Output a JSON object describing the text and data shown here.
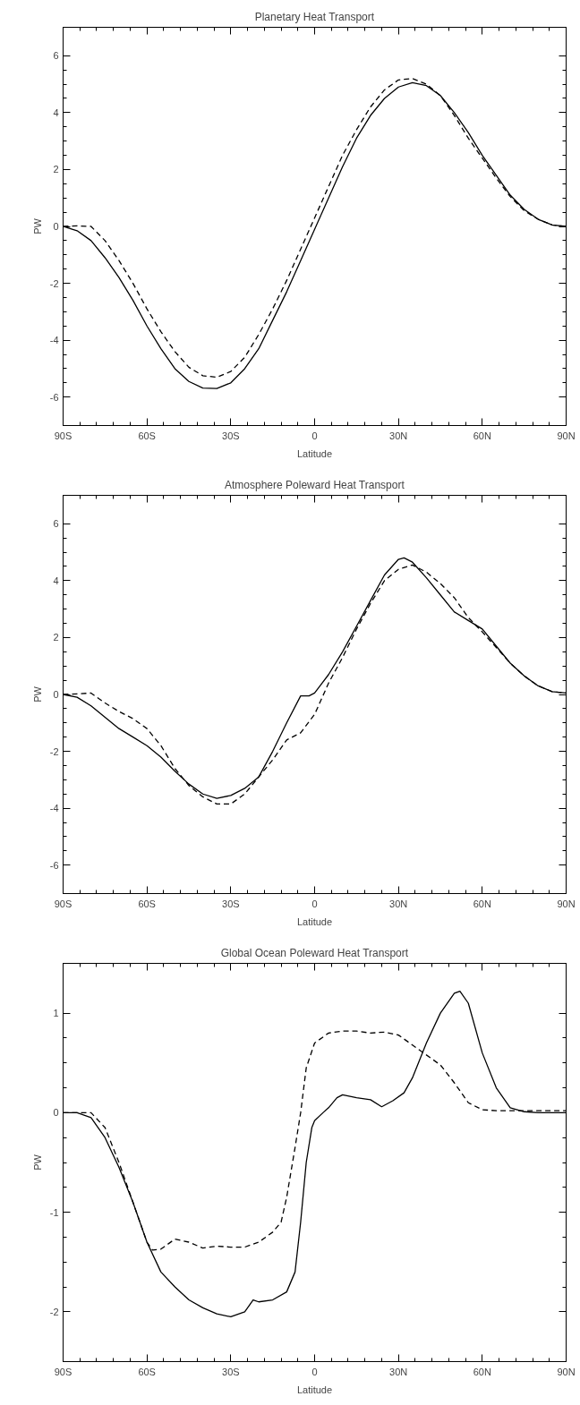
{
  "chart_data": [
    {
      "type": "line",
      "title": "Planetary Heat Transport",
      "xlabel": "Latitude",
      "ylabel": "PW",
      "xlim": [
        -90,
        90
      ],
      "ylim": [
        -7,
        7
      ],
      "xticks": [
        {
          "value": -90,
          "label": "90S"
        },
        {
          "value": -60,
          "label": "60S"
        },
        {
          "value": -30,
          "label": "30S"
        },
        0,
        {
          "value": 30,
          "label": "30N"
        },
        {
          "value": 60,
          "label": "60N"
        },
        {
          "value": 90,
          "label": "90N"
        }
      ],
      "yticks": [
        -6,
        -4,
        -2,
        0,
        2,
        4,
        6
      ],
      "grid": false,
      "series": [
        {
          "color": "#000000",
          "line_style": "solid",
          "x": [
            -90,
            -85,
            -80,
            -75,
            -70,
            -65,
            -60,
            -55,
            -50,
            -45,
            -40,
            -35,
            -30,
            -25,
            -20,
            -15,
            -10,
            -5,
            0,
            5,
            10,
            15,
            20,
            25,
            30,
            35,
            40,
            45,
            50,
            55,
            60,
            65,
            70,
            75,
            80,
            85,
            90
          ],
          "values": [
            0,
            -0.15,
            -0.5,
            -1.1,
            -1.8,
            -2.6,
            -3.5,
            -4.3,
            -5.0,
            -5.45,
            -5.68,
            -5.7,
            -5.5,
            -5.0,
            -4.3,
            -3.3,
            -2.3,
            -1.2,
            -0.1,
            1.0,
            2.1,
            3.1,
            3.9,
            4.5,
            4.9,
            5.05,
            4.95,
            4.6,
            4.0,
            3.3,
            2.5,
            1.8,
            1.1,
            0.6,
            0.25,
            0.05,
            0
          ]
        },
        {
          "color": "#000000",
          "line_style": "dashed",
          "x": [
            -90,
            -85,
            -80,
            -75,
            -70,
            -65,
            -60,
            -55,
            -50,
            -45,
            -40,
            -35,
            -30,
            -25,
            -20,
            -15,
            -10,
            -5,
            0,
            5,
            10,
            15,
            20,
            25,
            30,
            35,
            40,
            45,
            50,
            55,
            60,
            65,
            70,
            75,
            80,
            85,
            90
          ],
          "values": [
            0,
            0.02,
            0,
            -0.5,
            -1.2,
            -2.0,
            -2.9,
            -3.7,
            -4.4,
            -4.95,
            -5.25,
            -5.3,
            -5.1,
            -4.6,
            -3.8,
            -2.9,
            -1.9,
            -0.8,
            0.3,
            1.4,
            2.5,
            3.4,
            4.2,
            4.8,
            5.15,
            5.2,
            5.0,
            4.6,
            3.9,
            3.1,
            2.4,
            1.7,
            1.05,
            0.55,
            0.25,
            0.05,
            0
          ]
        }
      ]
    },
    {
      "type": "line",
      "title": "Atmosphere Poleward Heat Transport",
      "xlabel": "Latitude",
      "ylabel": "PW",
      "xlim": [
        -90,
        90
      ],
      "ylim": [
        -7,
        7
      ],
      "xticks": [
        {
          "value": -90,
          "label": "90S"
        },
        {
          "value": -60,
          "label": "60S"
        },
        {
          "value": -30,
          "label": "30S"
        },
        0,
        {
          "value": 30,
          "label": "30N"
        },
        {
          "value": 60,
          "label": "60N"
        },
        {
          "value": 90,
          "label": "90N"
        }
      ],
      "yticks": [
        -6,
        -4,
        -2,
        0,
        2,
        4,
        6
      ],
      "grid": false,
      "series": [
        {
          "color": "#000000",
          "line_style": "solid",
          "x": [
            -90,
            -85,
            -80,
            -75,
            -70,
            -65,
            -60,
            -55,
            -50,
            -45,
            -40,
            -35,
            -30,
            -25,
            -20,
            -15,
            -10,
            -5,
            -2,
            0,
            5,
            10,
            15,
            20,
            25,
            30,
            32,
            35,
            40,
            45,
            50,
            55,
            60,
            65,
            70,
            75,
            80,
            85,
            90
          ],
          "values": [
            0,
            -0.1,
            -0.4,
            -0.8,
            -1.2,
            -1.5,
            -1.8,
            -2.2,
            -2.7,
            -3.15,
            -3.5,
            -3.65,
            -3.55,
            -3.3,
            -2.9,
            -2.0,
            -1.0,
            -0.05,
            -0.05,
            0.05,
            0.7,
            1.5,
            2.4,
            3.3,
            4.2,
            4.75,
            4.8,
            4.65,
            4.1,
            3.5,
            2.9,
            2.6,
            2.3,
            1.7,
            1.1,
            0.65,
            0.3,
            0.1,
            0.05
          ]
        },
        {
          "color": "#000000",
          "line_style": "dashed",
          "x": [
            -90,
            -85,
            -80,
            -75,
            -70,
            -65,
            -60,
            -55,
            -50,
            -45,
            -40,
            -35,
            -30,
            -25,
            -20,
            -15,
            -10,
            -5,
            0,
            5,
            10,
            15,
            20,
            25,
            30,
            35,
            40,
            45,
            50,
            55,
            60,
            65,
            70,
            75,
            80,
            85,
            90
          ],
          "values": [
            0,
            0.02,
            0.05,
            -0.3,
            -0.6,
            -0.85,
            -1.2,
            -1.8,
            -2.6,
            -3.2,
            -3.6,
            -3.85,
            -3.85,
            -3.5,
            -2.9,
            -2.3,
            -1.6,
            -1.35,
            -0.7,
            0.4,
            1.3,
            2.3,
            3.2,
            4.0,
            4.4,
            4.55,
            4.3,
            3.9,
            3.4,
            2.7,
            2.2,
            1.65,
            1.1,
            0.65,
            0.3,
            0.1,
            0.05
          ]
        }
      ]
    },
    {
      "type": "line",
      "title": "Global Ocean Poleward Heat Transport",
      "xlabel": "Latitude",
      "ylabel": "PW",
      "xlim": [
        -90,
        90
      ],
      "ylim": [
        -2.5,
        1.5
      ],
      "xticks": [
        {
          "value": -90,
          "label": "90S"
        },
        {
          "value": -60,
          "label": "60S"
        },
        {
          "value": -30,
          "label": "30S"
        },
        0,
        {
          "value": 30,
          "label": "30N"
        },
        {
          "value": 60,
          "label": "60N"
        },
        {
          "value": 90,
          "label": "90N"
        }
      ],
      "yticks": [
        -2,
        -1,
        0,
        1
      ],
      "grid": false,
      "series": [
        {
          "color": "#000000",
          "line_style": "solid",
          "x": [
            -90,
            -85,
            -80,
            -75,
            -70,
            -65,
            -60,
            -55,
            -50,
            -45,
            -40,
            -35,
            -30,
            -25,
            -22,
            -20,
            -15,
            -10,
            -7,
            -5,
            -3,
            -1,
            0,
            3,
            5,
            8,
            10,
            15,
            20,
            24,
            28,
            32,
            35,
            40,
            45,
            50,
            52,
            55,
            60,
            65,
            70,
            75,
            80,
            90
          ],
          "values": [
            0,
            0,
            -0.05,
            -0.25,
            -0.55,
            -0.9,
            -1.3,
            -1.6,
            -1.75,
            -1.88,
            -1.96,
            -2.02,
            -2.05,
            -2.0,
            -1.88,
            -1.9,
            -1.88,
            -1.8,
            -1.6,
            -1.1,
            -0.5,
            -0.15,
            -0.08,
            0.0,
            0.05,
            0.15,
            0.18,
            0.15,
            0.13,
            0.06,
            0.12,
            0.2,
            0.35,
            0.7,
            1.0,
            1.2,
            1.22,
            1.1,
            0.6,
            0.25,
            0.05,
            0.01,
            0,
            0
          ]
        },
        {
          "color": "#000000",
          "line_style": "dashed",
          "x": [
            -90,
            -80,
            -75,
            -70,
            -65,
            -60,
            -58,
            -55,
            -50,
            -45,
            -40,
            -35,
            -30,
            -25,
            -20,
            -15,
            -12,
            -10,
            -7,
            -5,
            -3,
            0,
            5,
            10,
            15,
            20,
            25,
            30,
            35,
            40,
            45,
            50,
            55,
            60,
            65,
            70,
            75,
            90
          ],
          "values": [
            0,
            0,
            -0.15,
            -0.5,
            -0.9,
            -1.3,
            -1.38,
            -1.37,
            -1.27,
            -1.3,
            -1.36,
            -1.34,
            -1.35,
            -1.35,
            -1.3,
            -1.2,
            -1.1,
            -0.85,
            -0.35,
            0.0,
            0.45,
            0.7,
            0.8,
            0.82,
            0.82,
            0.8,
            0.81,
            0.78,
            0.68,
            0.58,
            0.48,
            0.3,
            0.1,
            0.03,
            0.02,
            0.02,
            0.02,
            0.02
          ]
        }
      ]
    }
  ]
}
